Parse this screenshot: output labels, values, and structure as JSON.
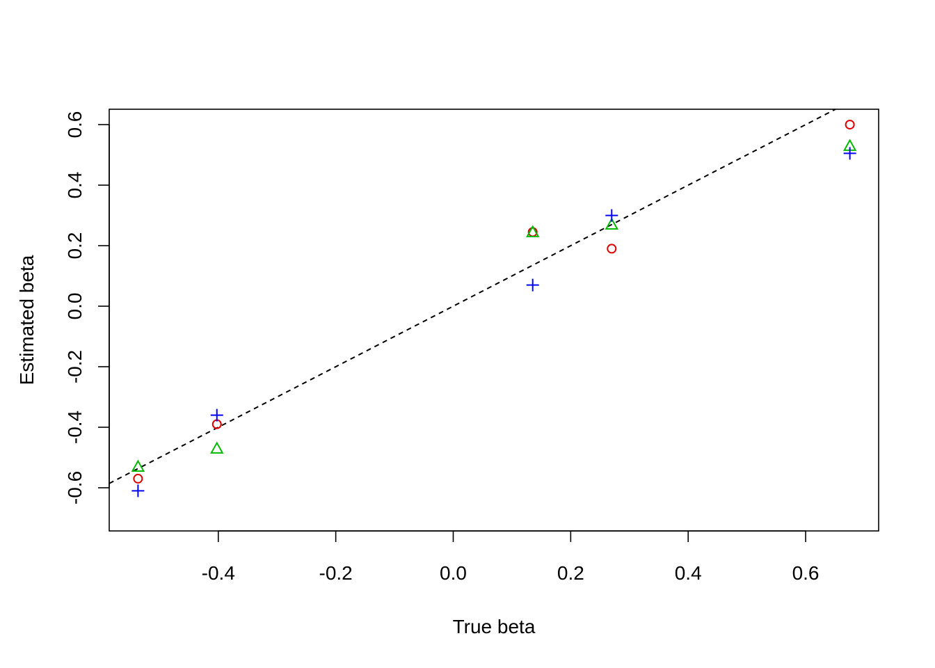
{
  "chart_data": {
    "type": "scatter",
    "xlabel": "True beta",
    "ylabel": "Estimated beta",
    "xlim": [
      -0.5857,
      0.7243
    ],
    "ylim": [
      -0.7426,
      0.6508
    ],
    "xticks": [
      -0.4,
      -0.2,
      0.0,
      0.2,
      0.4,
      0.6
    ],
    "xtick_labels": [
      "-0.4",
      "-0.2",
      "0.0",
      "0.2",
      "0.4",
      "0.6"
    ],
    "yticks": [
      -0.6,
      -0.4,
      -0.2,
      0.0,
      0.2,
      0.4,
      0.6
    ],
    "ytick_labels": [
      "-0.6",
      "-0.4",
      "-0.2",
      "0.0",
      "0.2",
      "0.4",
      "0.6"
    ],
    "grid": false,
    "reference_line": {
      "slope": 1,
      "intercept": 0,
      "style": "dashed",
      "color": "#000000"
    },
    "series": [
      {
        "marker": "circle",
        "color": "#DF0000",
        "x": [
          -0.5367,
          -0.4024,
          0.1353,
          0.2698,
          0.6753
        ],
        "y": [
          -0.57,
          -0.39,
          0.245,
          0.19,
          0.6
        ]
      },
      {
        "marker": "triangle",
        "color": "#00BB00",
        "x": [
          -0.5367,
          -0.4024,
          0.1353,
          0.2698,
          0.6753
        ],
        "y": [
          -0.53,
          -0.47,
          0.245,
          0.27,
          0.53
        ]
      },
      {
        "marker": "plus",
        "color": "#0000FF",
        "x": [
          -0.5367,
          -0.4024,
          0.1353,
          0.2698,
          0.6753
        ],
        "y": [
          -0.61,
          -0.36,
          0.07,
          0.3,
          0.505
        ]
      }
    ]
  }
}
